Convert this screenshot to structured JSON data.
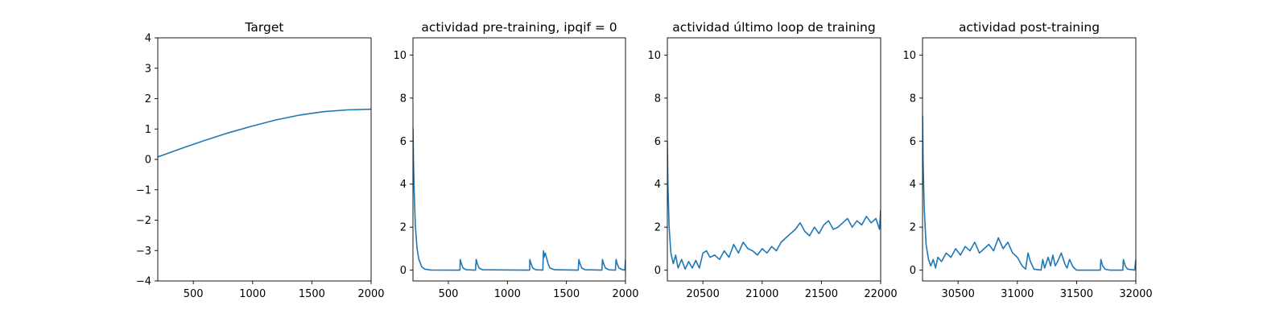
{
  "series_color": "#1f77b4",
  "chart_data": [
    {
      "type": "line",
      "title": "Target",
      "xlim": [
        200,
        2000
      ],
      "ylim": [
        -4,
        4
      ],
      "xticks": [
        500,
        1000,
        1500,
        2000
      ],
      "yticks": [
        -4,
        -3,
        -2,
        -1,
        0,
        1,
        2,
        3,
        4
      ],
      "x": [
        200,
        400,
        600,
        800,
        1000,
        1200,
        1400,
        1600,
        1800,
        2000
      ],
      "y": [
        0.08,
        0.36,
        0.63,
        0.88,
        1.1,
        1.3,
        1.46,
        1.57,
        1.63,
        1.65
      ],
      "grid": false
    },
    {
      "type": "line",
      "title": "actividad pre-training, ipqif = 0",
      "xlim": [
        200,
        2000
      ],
      "ylim": [
        -0.5,
        10.8
      ],
      "xticks": [
        500,
        1000,
        1500,
        2000
      ],
      "yticks": [
        0,
        2,
        4,
        6,
        8,
        10
      ],
      "x": [
        200,
        205,
        210,
        220,
        235,
        250,
        275,
        300,
        350,
        598,
        600,
        610,
        625,
        650,
        730,
        735,
        745,
        760,
        790,
        1188,
        1190,
        1200,
        1215,
        1240,
        1300,
        1305,
        1310,
        1320,
        1330,
        1345,
        1360,
        1400,
        1600,
        1605,
        1615,
        1630,
        1660,
        1800,
        1805,
        1815,
        1830,
        1860,
        1915,
        1920,
        1930,
        1945,
        1975,
        1995,
        2000
      ],
      "y": [
        6.6,
        5.0,
        3.7,
        2.1,
        1.0,
        0.5,
        0.15,
        0.05,
        0.01,
        0.0,
        0.5,
        0.3,
        0.1,
        0.02,
        0.0,
        0.5,
        0.3,
        0.1,
        0.02,
        0.0,
        0.5,
        0.3,
        0.1,
        0.02,
        0.0,
        0.9,
        0.6,
        0.8,
        0.6,
        0.3,
        0.1,
        0.02,
        0.0,
        0.5,
        0.3,
        0.1,
        0.02,
        0.0,
        0.5,
        0.3,
        0.1,
        0.02,
        0.0,
        0.5,
        0.3,
        0.1,
        0.02,
        0.0,
        0.5
      ],
      "grid": false
    },
    {
      "type": "line",
      "title": "actividad último loop de training",
      "xlim": [
        20200,
        22000
      ],
      "ylim": [
        -0.5,
        10.8
      ],
      "xticks": [
        20500,
        21000,
        21500,
        22000
      ],
      "yticks": [
        0,
        2,
        4,
        6,
        8,
        10
      ],
      "x": [
        20200,
        20205,
        20215,
        20230,
        20250,
        20270,
        20290,
        20320,
        20350,
        20380,
        20410,
        20440,
        20470,
        20500,
        20530,
        20560,
        20600,
        20640,
        20680,
        20720,
        20760,
        20800,
        20840,
        20880,
        20920,
        20960,
        21000,
        21040,
        21080,
        21120,
        21160,
        21200,
        21240,
        21280,
        21320,
        21360,
        21400,
        21440,
        21480,
        21520,
        21560,
        21600,
        21640,
        21680,
        21720,
        21760,
        21800,
        21840,
        21880,
        21920,
        21960,
        21990,
        22000
      ],
      "y": [
        6.0,
        4.0,
        2.0,
        0.8,
        0.3,
        0.7,
        0.1,
        0.5,
        0.05,
        0.4,
        0.1,
        0.45,
        0.1,
        0.8,
        0.9,
        0.6,
        0.7,
        0.5,
        0.9,
        0.6,
        1.2,
        0.8,
        1.3,
        1.0,
        0.9,
        0.7,
        1.0,
        0.8,
        1.1,
        0.9,
        1.3,
        1.5,
        1.7,
        1.9,
        2.2,
        1.8,
        1.6,
        2.0,
        1.7,
        2.1,
        2.3,
        1.9,
        2.0,
        2.2,
        2.4,
        2.0,
        2.3,
        2.1,
        2.5,
        2.2,
        2.4,
        1.9,
        2.8
      ],
      "grid": false
    },
    {
      "type": "line",
      "title": "actividad post-training",
      "xlim": [
        30200,
        32000
      ],
      "ylim": [
        -0.5,
        10.8
      ],
      "xticks": [
        30500,
        31000,
        31500,
        32000
      ],
      "yticks": [
        0,
        2,
        4,
        6,
        8,
        10
      ],
      "x": [
        30200,
        30205,
        30215,
        30230,
        30250,
        30270,
        30290,
        30310,
        30330,
        30360,
        30400,
        30440,
        30480,
        30520,
        30560,
        30600,
        30640,
        30680,
        30720,
        30760,
        30800,
        30840,
        30880,
        30920,
        30960,
        31000,
        31040,
        31070,
        31090,
        31110,
        31140,
        31200,
        31215,
        31230,
        31260,
        31280,
        31300,
        31320,
        31340,
        31370,
        31400,
        31420,
        31440,
        31470,
        31500,
        31700,
        31705,
        31720,
        31740,
        31780,
        31890,
        31895,
        31910,
        31930,
        31990,
        32000
      ],
      "y": [
        7.2,
        5.0,
        2.8,
        1.2,
        0.5,
        0.2,
        0.5,
        0.1,
        0.6,
        0.4,
        0.8,
        0.6,
        1.0,
        0.7,
        1.1,
        0.9,
        1.3,
        0.8,
        1.0,
        1.2,
        0.9,
        1.5,
        1.0,
        1.3,
        0.8,
        0.6,
        0.2,
        0.05,
        0.8,
        0.4,
        0.05,
        0.0,
        0.5,
        0.1,
        0.6,
        0.2,
        0.7,
        0.2,
        0.4,
        0.8,
        0.3,
        0.1,
        0.5,
        0.15,
        0.0,
        0.0,
        0.5,
        0.2,
        0.05,
        0.0,
        0.0,
        0.5,
        0.2,
        0.05,
        0.0,
        0.5
      ],
      "grid": false
    }
  ]
}
